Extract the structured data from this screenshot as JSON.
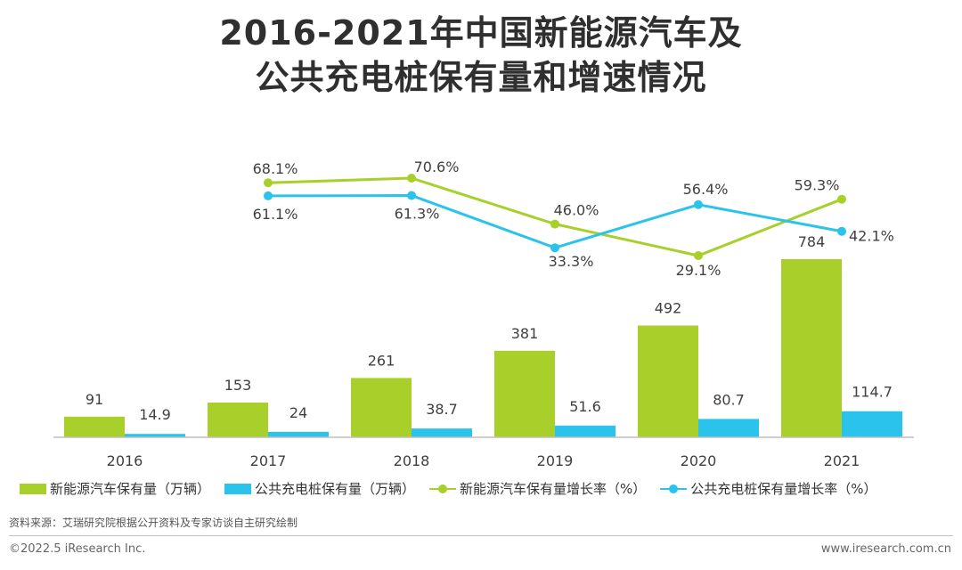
{
  "title": {
    "line1": "2016-2021年中国新能源汽车及",
    "line2": "公共充电桩保有量和增速情况"
  },
  "colors": {
    "green": "#a8cf2a",
    "blue": "#29c3ec",
    "axis": "#bfbfbf",
    "label": "#404040"
  },
  "chart_data": {
    "type": "bar",
    "categories": [
      "2016",
      "2017",
      "2018",
      "2019",
      "2020",
      "2021"
    ],
    "series": [
      {
        "name": "新能源汽车保有量（万辆）",
        "kind": "bar",
        "color": "#a8cf2a",
        "values": [
          91,
          153,
          261,
          381,
          492,
          784
        ],
        "labels": [
          "91",
          "153",
          "261",
          "381",
          "492",
          "784"
        ]
      },
      {
        "name": "公共充电桩保有量（万辆）",
        "kind": "bar",
        "color": "#29c3ec",
        "values": [
          14.9,
          24,
          38.7,
          51.6,
          80.7,
          114.7
        ],
        "labels": [
          "14.9",
          "24",
          "38.7",
          "51.6",
          "80.7",
          "114.7"
        ]
      },
      {
        "name": "新能源汽车保有量增长率（%）",
        "kind": "line",
        "color": "#a8cf2a",
        "values": [
          null,
          68.1,
          70.6,
          46.0,
          29.1,
          59.3
        ],
        "labels": [
          "",
          "68.1%",
          "70.6%",
          "46.0%",
          "29.1%",
          "59.3%"
        ]
      },
      {
        "name": "公共充电桩保有量增长率（%）",
        "kind": "line",
        "color": "#29c3ec",
        "values": [
          null,
          61.1,
          61.3,
          33.3,
          56.4,
          42.1
        ],
        "labels": [
          "",
          "61.1%",
          "61.3%",
          "33.3%",
          "56.4%",
          "42.1%"
        ]
      }
    ],
    "bar_axis_max": 784,
    "line_axis_range": [
      29.1,
      70.6
    ],
    "grid": false,
    "legend_position": "bottom"
  },
  "legend": [
    {
      "label": "新能源汽车保有量（万辆）",
      "kind": "bar",
      "color": "#a8cf2a"
    },
    {
      "label": "公共充电桩保有量（万辆）",
      "kind": "bar",
      "color": "#29c3ec"
    },
    {
      "label": "新能源汽车保有量增长率（%）",
      "kind": "line",
      "color": "#a8cf2a"
    },
    {
      "label": "公共充电桩保有量增长率（%）",
      "kind": "line",
      "color": "#29c3ec"
    }
  ],
  "footer": {
    "source": "资料来源：艾瑞研究院根据公开资料及专家访谈自主研究绘制",
    "copyright": "©2022.5 iResearch Inc.",
    "website": "www.iresearch.com.cn"
  }
}
